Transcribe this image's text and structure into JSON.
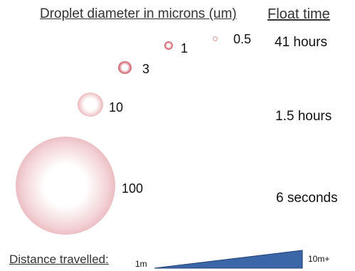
{
  "header": {
    "droplet_title": "Droplet diameter in microns (um)",
    "float_title": "Float time"
  },
  "droplets": [
    {
      "size": "100",
      "color": "#d9888f"
    },
    {
      "size": "10",
      "color": "#d98a90"
    },
    {
      "size": "3",
      "color": "#c23d4a"
    },
    {
      "size": "1",
      "color": "#c23d4a"
    },
    {
      "size": "0.5",
      "color": "#d06a74"
    }
  ],
  "float_times": [
    "41 hours",
    "1.5 hours",
    "6 seconds"
  ],
  "distance": {
    "label": "Distance travelled:",
    "start": "1m",
    "end": "10m+",
    "wedge_color": "#3b66a8"
  }
}
